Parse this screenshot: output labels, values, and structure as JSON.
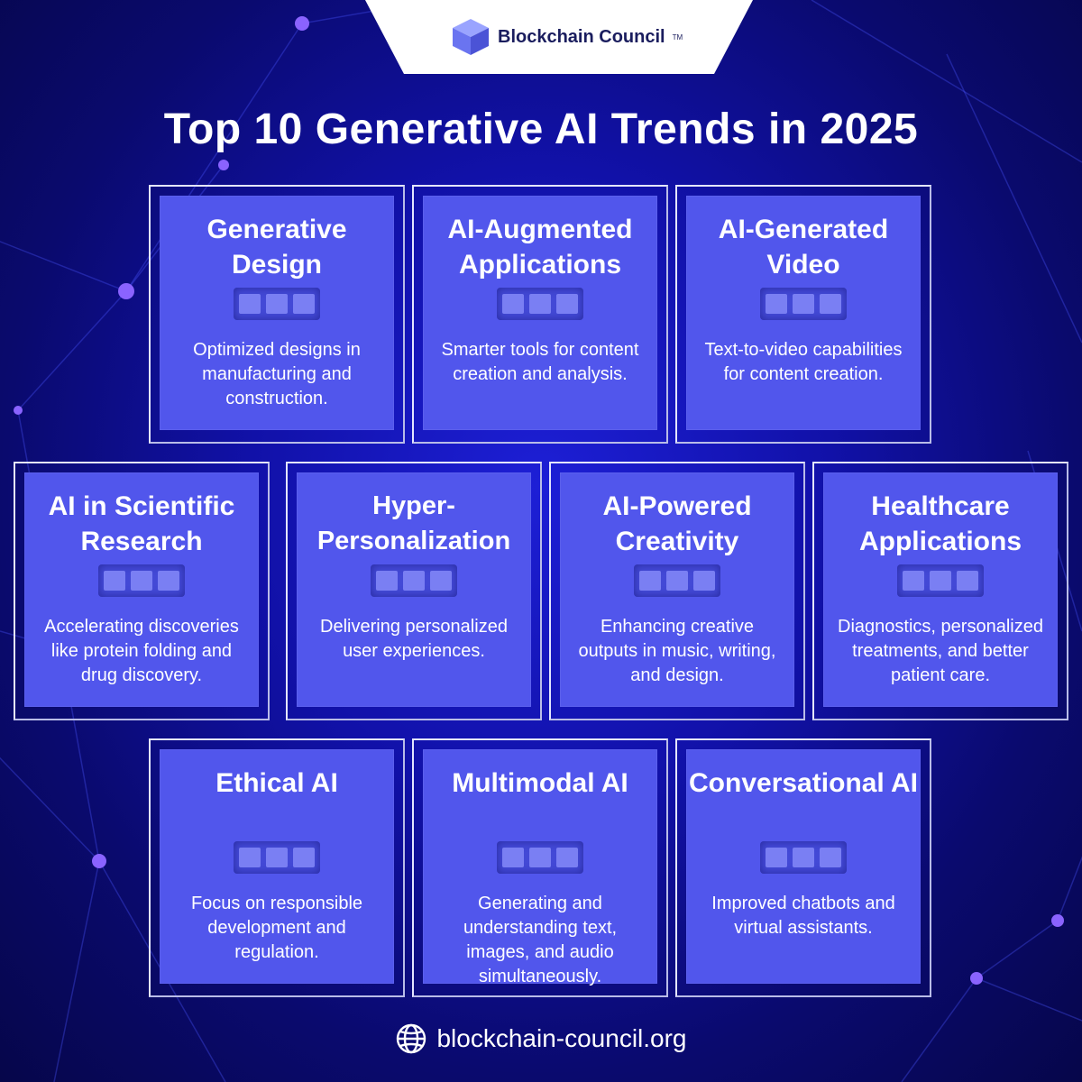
{
  "brand": {
    "name": "Blockchain Council",
    "trademark": "TM"
  },
  "title": "Top 10 Generative AI Trends in 2025",
  "colors": {
    "card": "#5156ec",
    "background": "#1111a8",
    "text": "#ffffff"
  },
  "cards": [
    {
      "title": "Generative Design",
      "description": "Optimized designs in manufacturing and construction."
    },
    {
      "title": "AI-Augmented Applications",
      "description": "Smarter tools for content creation and analysis."
    },
    {
      "title": "AI-Generated Video",
      "description": "Text-to-video capabilities for content creation."
    },
    {
      "title": "AI in Scientific Research",
      "description": "Accelerating discoveries like protein folding and drug discovery."
    },
    {
      "title": "Hyper-Personalization",
      "description": "Delivering personalized user experiences."
    },
    {
      "title": "AI-Powered Creativity",
      "description": "Enhancing creative outputs in music, writing, and design."
    },
    {
      "title": "Healthcare Applications",
      "description": "Diagnostics, personalized treatments, and better patient care."
    },
    {
      "title": "Ethical AI",
      "description": "Focus on responsible development and regulation."
    },
    {
      "title": "Multimodal AI",
      "description": "Generating and understanding text, images, and audio simultaneously."
    },
    {
      "title": "Conversational AI",
      "description": "Improved chatbots and virtual assistants."
    }
  ],
  "footer": {
    "icon": "globe-icon",
    "url": "blockchain-council.org"
  }
}
